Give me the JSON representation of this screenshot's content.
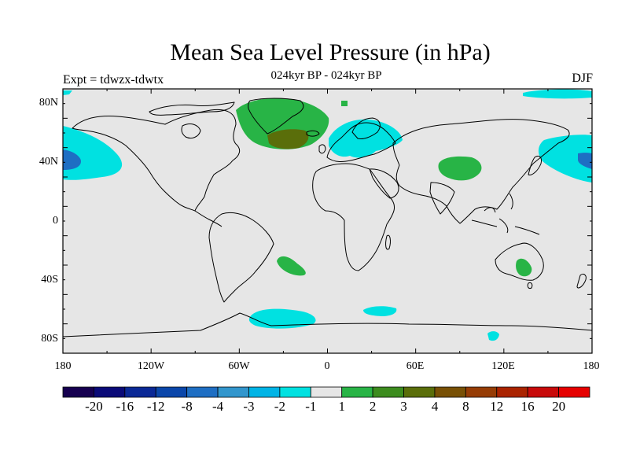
{
  "title": "Mean Sea Level Pressure (in hPa)",
  "subtitle": "024kyr BP - 024kyr BP",
  "experiment": "Expt = tdwzx-tdwtx",
  "season": "DJF",
  "axes": {
    "lat_ticks": [
      "80N",
      "40N",
      "0",
      "40S",
      "80S"
    ],
    "lon_ticks": [
      "180",
      "120W",
      "60W",
      "0",
      "60E",
      "120E",
      "180"
    ]
  },
  "colorbar": {
    "colors": [
      "#160050",
      "#0a0a78",
      "#0a2896",
      "#0a46aa",
      "#1e6ec3",
      "#3296cd",
      "#00b4e6",
      "#00e1e1",
      "#e6e6e6",
      "#28b446",
      "#3c8c1e",
      "#5a6e0a",
      "#785005",
      "#963c05",
      "#aa2300",
      "#c80a0a",
      "#e60000"
    ],
    "labels": [
      "-20",
      "-16",
      "-12",
      "-8",
      "-4",
      "-3",
      "-2",
      "-1",
      "1",
      "2",
      "3",
      "4",
      "8",
      "12",
      "16",
      "20"
    ]
  },
  "ocean_fill": "#e6e6e6"
}
